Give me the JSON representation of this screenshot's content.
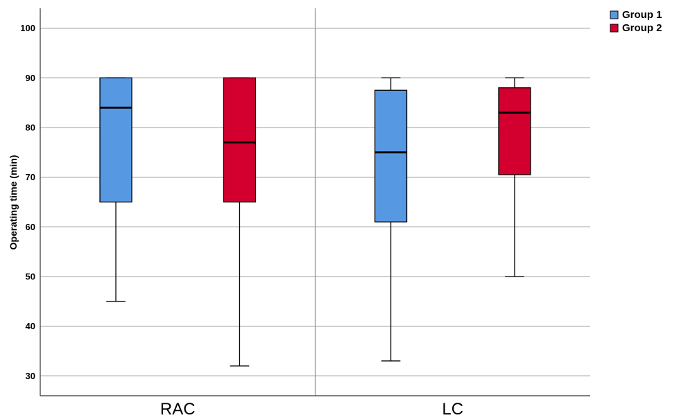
{
  "chart_data": {
    "type": "boxplot",
    "title": "",
    "xlabel": "",
    "ylabel": "Operating time (min)",
    "categories": [
      "RAC",
      "LC"
    ],
    "ylim": [
      26,
      104
    ],
    "yticks": [
      30,
      40,
      50,
      60,
      70,
      80,
      90,
      100
    ],
    "grid": true,
    "legend_position": "top-right",
    "series": [
      {
        "name": "Group 1",
        "color": "#5798E3",
        "boxes": [
          {
            "min": 45,
            "q1": 65,
            "median": 84,
            "q3": 90,
            "max": 90
          },
          {
            "min": 33,
            "q1": 61,
            "median": 75,
            "q3": 87.5,
            "max": 90
          }
        ]
      },
      {
        "name": "Group 2",
        "color": "#D3002F",
        "boxes": [
          {
            "min": 32,
            "q1": 65,
            "median": 77,
            "q3": 90,
            "max": 90
          },
          {
            "min": 50,
            "q1": 70.5,
            "median": 83,
            "q3": 88,
            "max": 90
          }
        ]
      }
    ]
  }
}
